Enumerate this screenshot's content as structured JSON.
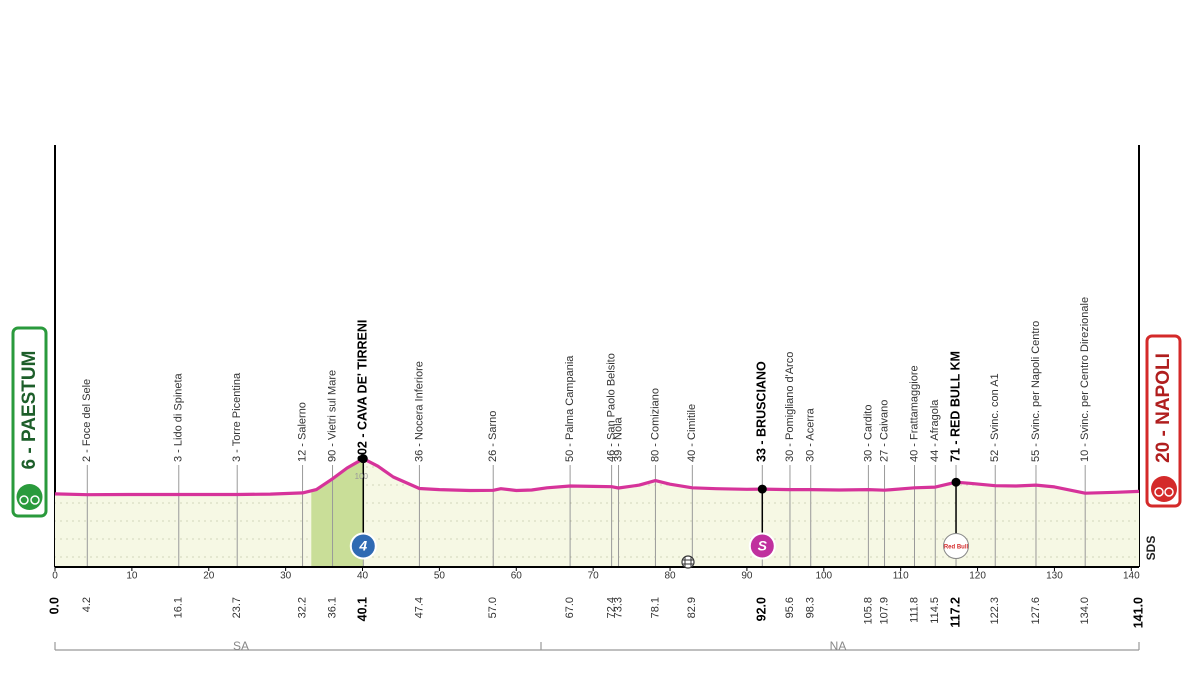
{
  "chart_data": {
    "type": "stage-profile",
    "start": {
      "label": "6 - PAESTUM",
      "km": {
        "value": 0,
        "label": "0.0"
      }
    },
    "finish": {
      "label": "20 - NAPOLI",
      "km": {
        "value": 141,
        "label": "141.0"
      }
    },
    "xlim": [
      0,
      141
    ],
    "xticks": [
      0,
      10,
      20,
      30,
      40,
      50,
      60,
      70,
      80,
      90,
      100,
      110,
      120,
      130,
      140
    ],
    "ylim": [
      -400,
      1945
    ],
    "yticks": [
      100
    ],
    "profile": {
      "color": "#d6339a",
      "x": [
        0,
        4.2,
        10,
        16.1,
        20,
        23.7,
        28,
        32.2,
        34,
        36.1,
        38,
        40.1,
        42,
        44,
        47.4,
        50,
        54,
        57,
        58,
        60,
        62,
        64,
        67,
        70,
        72.4,
        73.3,
        76,
        78.1,
        80,
        82.9,
        86,
        90,
        92,
        95.6,
        98.3,
        102,
        105.8,
        107.9,
        111.8,
        114.5,
        117.2,
        119,
        122.3,
        125,
        127.6,
        130,
        134,
        138,
        141
      ],
      "values": [
        6,
        2,
        3,
        3,
        3,
        3,
        5,
        12,
        30,
        90,
        150,
        202,
        160,
        100,
        36,
        30,
        25,
        26,
        35,
        25,
        28,
        40,
        50,
        48,
        46,
        39,
        55,
        80,
        60,
        40,
        35,
        32,
        33,
        30,
        30,
        28,
        30,
        27,
        40,
        44,
        71,
        65,
        52,
        50,
        55,
        45,
        10,
        15,
        20
      ]
    },
    "waypoints": [
      {
        "label": "2 - Foce del Sele",
        "km": 4.2
      },
      {
        "label": "3 - Lido di Spineta",
        "km": 16.1
      },
      {
        "label": "3 - Torre Picentina",
        "km": 23.7
      },
      {
        "label": "12 - Salerno",
        "km": 32.2
      },
      {
        "label": "90 - Vietri sul Mare",
        "km": 36.1
      },
      {
        "label": "202 - CAVA DE' TIRRENI",
        "km": 40.1,
        "bold": true,
        "badge": "4",
        "badge_color": "#2f6ab3"
      },
      {
        "label": "36 - Nocera Inferiore",
        "km": 47.4
      },
      {
        "label": "26 - Sarno",
        "km": {
          "value": 57,
          "label": "57.0"
        }
      },
      {
        "label": "50 - Palma Campania",
        "km": {
          "value": 67,
          "label": "67.0"
        }
      },
      {
        "label": "46 - San Paolo Belsito",
        "km": 72.4
      },
      {
        "label": "39 - Nola",
        "km": 73.3
      },
      {
        "label": "80 - Comiziano",
        "km": 78.1
      },
      {
        "label": "40 - Cimitile",
        "km": 82.9
      },
      {
        "label": "33 - BRUSCIANO",
        "km": {
          "value": 92,
          "label": "92.0"
        },
        "bold": true,
        "badge": "S",
        "badge_color": "#c0309e"
      },
      {
        "label": "30 - Pomigliano d'Arco",
        "km": 95.6
      },
      {
        "label": "30 - Acerra",
        "km": 98.3
      },
      {
        "label": "30 - Cardito",
        "km": 105.8
      },
      {
        "label": "27 - Caivano",
        "km": 107.9
      },
      {
        "label": "40 - Frattamaggiore",
        "km": 111.8
      },
      {
        "label": "44 - Afragola",
        "km": 114.5
      },
      {
        "label": "71 - RED BULL KM",
        "km": 117.2,
        "bold": true,
        "badge": "Red Bull",
        "badge_color": "#ffffff"
      },
      {
        "label": "52 - Svinc. con A1",
        "km": 122.3
      },
      {
        "label": "55 - Svinc. per Napoli Centro",
        "km": 127.6
      },
      {
        "label": "10 - Svinc. per Centro Direzionale",
        "km": {
          "value": 134,
          "label": "134.0"
        }
      }
    ],
    "regions": [
      {
        "label": "SA"
      },
      {
        "label": "NA"
      }
    ],
    "logo": "SDS"
  }
}
